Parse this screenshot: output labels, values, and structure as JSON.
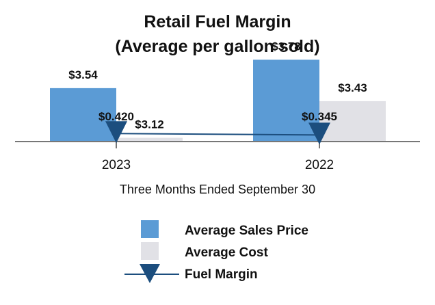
{
  "chart_data": {
    "type": "bar",
    "title": "Retail Fuel Margin",
    "subtitle": "(Average per gallon sold)",
    "xlabel": "Three Months Ended September 30",
    "categories": [
      "2023",
      "2022"
    ],
    "series": [
      {
        "name": "Average Sales Price",
        "type": "bar",
        "values": [
          3.54,
          3.78
        ],
        "labels": [
          "$3.54",
          "$3.78"
        ],
        "color": "#5b9bd5"
      },
      {
        "name": "Average Cost",
        "type": "bar",
        "values": [
          3.12,
          3.43
        ],
        "labels": [
          "$3.12",
          "$3.43"
        ],
        "color": "#e1e1e6"
      },
      {
        "name": "Fuel Margin",
        "type": "line",
        "values": [
          0.42,
          0.345
        ],
        "labels": [
          "$0.420",
          "$0.345"
        ],
        "color": "#1c4e7e"
      }
    ],
    "legend_position": "bottom"
  }
}
